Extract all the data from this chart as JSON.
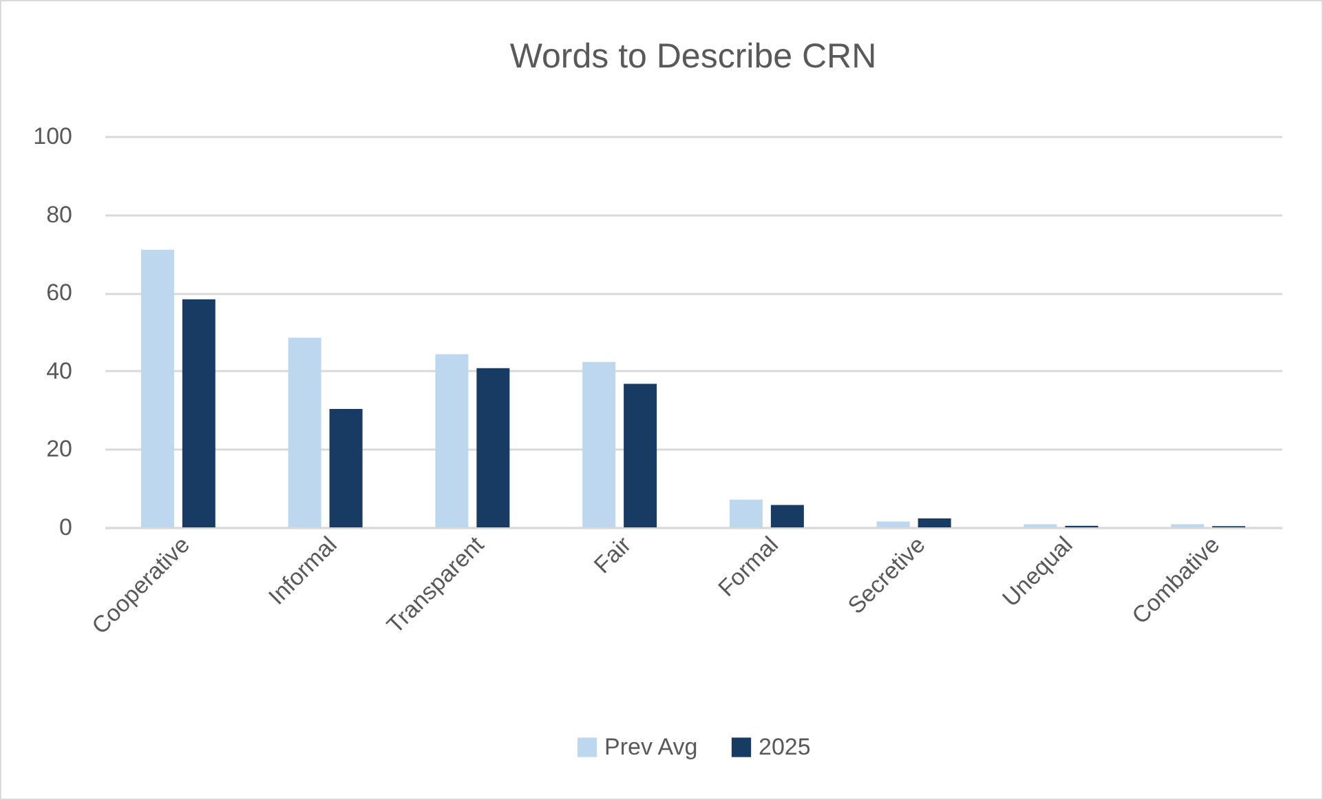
{
  "chart_data": {
    "type": "bar",
    "title": "Words to Describe CRN",
    "categories": [
      "Cooperative",
      "Informal",
      "Transparent",
      "Fair",
      "Formal",
      "Secretive",
      "Unequal",
      "Combative"
    ],
    "series": [
      {
        "name": "Prev Avg",
        "color": "#bdd7ee",
        "values": [
          71,
          48.5,
          44.3,
          42.3,
          7.1,
          1.5,
          0.8,
          0.8
        ]
      },
      {
        "name": "2025",
        "color": "#173b63",
        "values": [
          58.3,
          30.3,
          40.7,
          36.7,
          5.7,
          2.3,
          0.4,
          0.3
        ]
      }
    ],
    "ylim": [
      0,
      100
    ],
    "yticks": [
      0,
      20,
      40,
      60,
      80,
      100
    ],
    "grid": "y",
    "legend": "bottom"
  }
}
